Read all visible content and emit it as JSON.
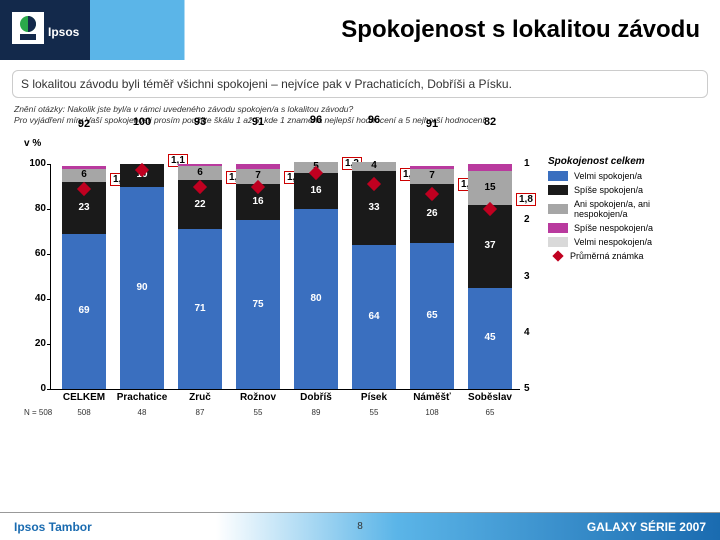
{
  "title": "Spokojenost s lokalitou závodu",
  "subtitle": "S lokalitou závodu byli téměř všichni spokojeni – nejvíce pak v Prachaticích, Dobříši  a Písku.",
  "question_line1": "Znění otázky: Nakolik jste byl/a v rámci uvedeného závodu spokojen/a s lokalitou závodu?",
  "question_line2": "Pro vyjádření míry Vaší spokojenosti prosím použijte škálu 1 až 5, kde 1 znamená nejlepší hodnocení a 5 nejhorší hodnocení.",
  "y_axis": {
    "label": "v %",
    "min": 0,
    "max": 100,
    "ticks": [
      0,
      20,
      40,
      60,
      80,
      100
    ]
  },
  "right_axis": {
    "ticks": [
      1,
      2,
      3,
      4,
      5
    ],
    "positions_pct_from_top": [
      0,
      25,
      50,
      75,
      100
    ]
  },
  "colors": {
    "seg1": "#3a6fbf",
    "seg2": "#1a1a1a",
    "seg3": "#a6a6a6",
    "seg4": "#b93a9e",
    "seg5": "#d9d9d9",
    "diamond": "#c00020",
    "background": "#ffffff",
    "header_blue": "#5bb5e8",
    "logo_bg": "#13294b"
  },
  "legend": {
    "title": "Spokojenost celkem",
    "items": [
      {
        "label": "Velmi spokojen/a",
        "color": "#3a6fbf"
      },
      {
        "label": "Spíše spokojen/a",
        "color": "#1a1a1a"
      },
      {
        "label": "Ani spokojen/a, ani nespokojen/a",
        "color": "#a6a6a6"
      },
      {
        "label": "Spíše nespokojen/a",
        "color": "#b93a9e"
      },
      {
        "label": "Velmi nespokojen/a",
        "color": "#d9d9d9"
      }
    ],
    "diamond_label": "Průměrná známka"
  },
  "categories": [
    {
      "name": "CELKEM",
      "n": "508",
      "total": 92,
      "mean": "1,4",
      "segs": [
        69,
        23,
        6,
        1,
        0
      ]
    },
    {
      "name": "Prachatice",
      "n": "48",
      "total": 100,
      "mean": "1,1",
      "segs": [
        90,
        10,
        0,
        0,
        0
      ]
    },
    {
      "name": "Zruč",
      "n": "87",
      "total": 93,
      "mean": "1,4",
      "segs": [
        71,
        22,
        6,
        1,
        0
      ]
    },
    {
      "name": "Rožnov",
      "n": "55",
      "total": 91,
      "mean": "1,4",
      "segs": [
        75,
        16,
        7,
        2,
        0
      ]
    },
    {
      "name": "Dobříš",
      "n": "89",
      "total": 96,
      "mean": "1,2",
      "segs": [
        80,
        16,
        5,
        0,
        0
      ]
    },
    {
      "name": "Písek",
      "n": "55",
      "total": 96,
      "mean": "1,4",
      "segs": [
        64,
        33,
        4,
        0,
        0
      ]
    },
    {
      "name": "Náměšť",
      "n": "108",
      "total": 91,
      "mean": "1,5",
      "segs": [
        65,
        26,
        7,
        1,
        0
      ]
    },
    {
      "name": "Soběslav",
      "n": "65",
      "total": 82,
      "mean": "1,8",
      "segs": [
        45,
        37,
        15,
        3,
        0
      ]
    }
  ],
  "n_title": "N = 508",
  "footer": {
    "left": "Ipsos Tambor",
    "mid": "8",
    "right": "GALAXY SÉRIE 2007"
  }
}
